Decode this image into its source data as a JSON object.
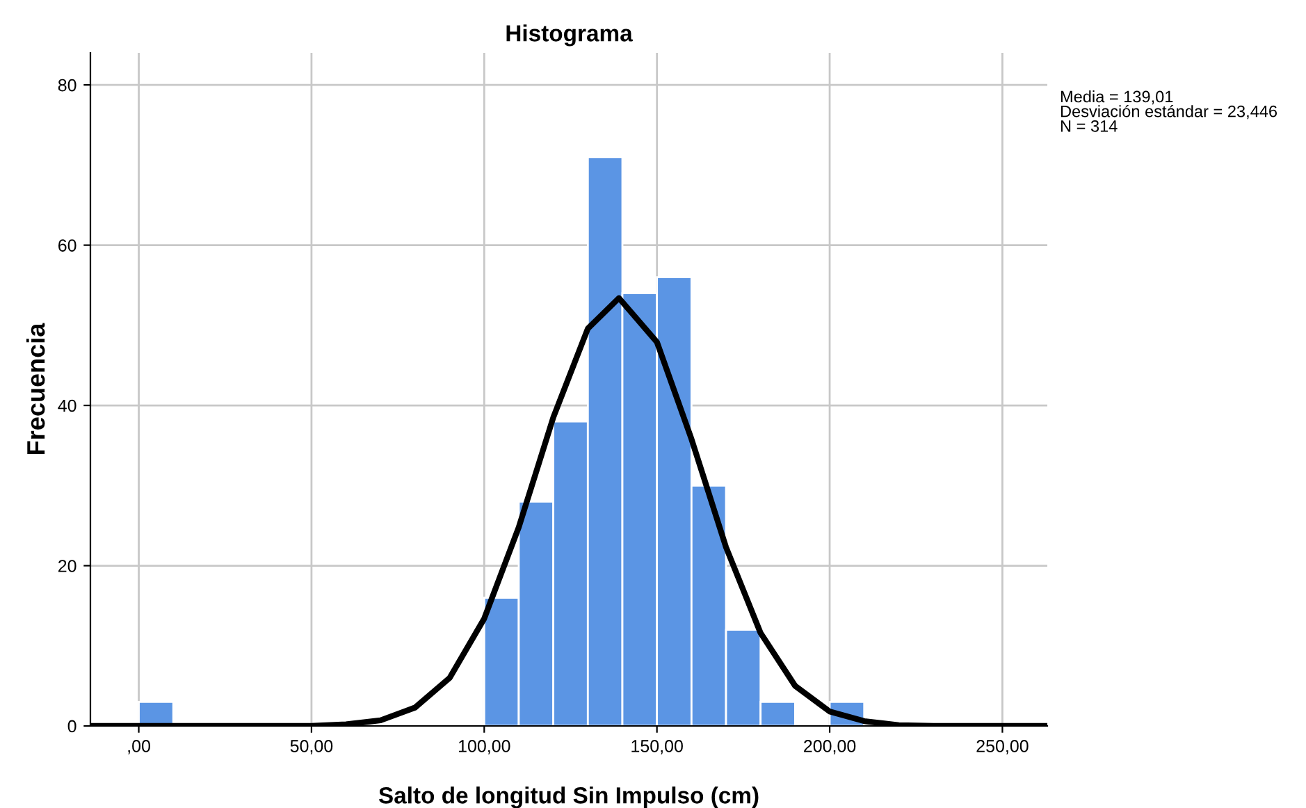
{
  "chart_data": {
    "type": "histogram",
    "title": "Histograma",
    "xlabel": "Salto de longitud Sin Impulso (cm)",
    "ylabel": "Frecuencia",
    "bins": [
      0,
      10,
      20,
      30,
      40,
      50,
      60,
      70,
      80,
      90,
      100,
      110,
      120,
      130,
      140,
      150,
      160,
      170,
      180,
      190,
      200,
      210
    ],
    "values": [
      3,
      0,
      0,
      0,
      0,
      0,
      0,
      0,
      0,
      0,
      16,
      28,
      38,
      71,
      54,
      56,
      30,
      12,
      3,
      0,
      3
    ],
    "color": "#5b95e4",
    "series": [
      {
        "type": "line",
        "color": "#000000",
        "x": [
          -14,
          50,
          60,
          70,
          80,
          90,
          100,
          110,
          120,
          130,
          139,
          150,
          160,
          170,
          180,
          190,
          200,
          210,
          220,
          230,
          263
        ],
        "values": [
          0,
          0,
          0.2,
          0.7,
          2.3,
          6,
          13.4,
          24.8,
          38.5,
          49.6,
          53.4,
          47.9,
          35.8,
          22.3,
          11.6,
          5,
          1.8,
          0.6,
          0.1,
          0,
          0
        ]
      }
    ],
    "xlim": [
      -14,
      263
    ],
    "ylim": [
      0,
      84
    ],
    "xticks": [
      {
        "value": 0,
        "label": ",00"
      },
      {
        "value": 50,
        "label": "50,00"
      },
      {
        "value": 100,
        "label": "100,00"
      },
      {
        "value": 150,
        "label": "150,00"
      },
      {
        "value": 200,
        "label": "200,00"
      },
      {
        "value": 250,
        "label": "250,00"
      }
    ],
    "yticks": [
      0,
      20,
      40,
      60,
      80
    ],
    "grid": true,
    "legend": false,
    "annotations": [
      "Media = 139,01\nDesviación estándar = 23,446\nN = 314"
    ]
  }
}
